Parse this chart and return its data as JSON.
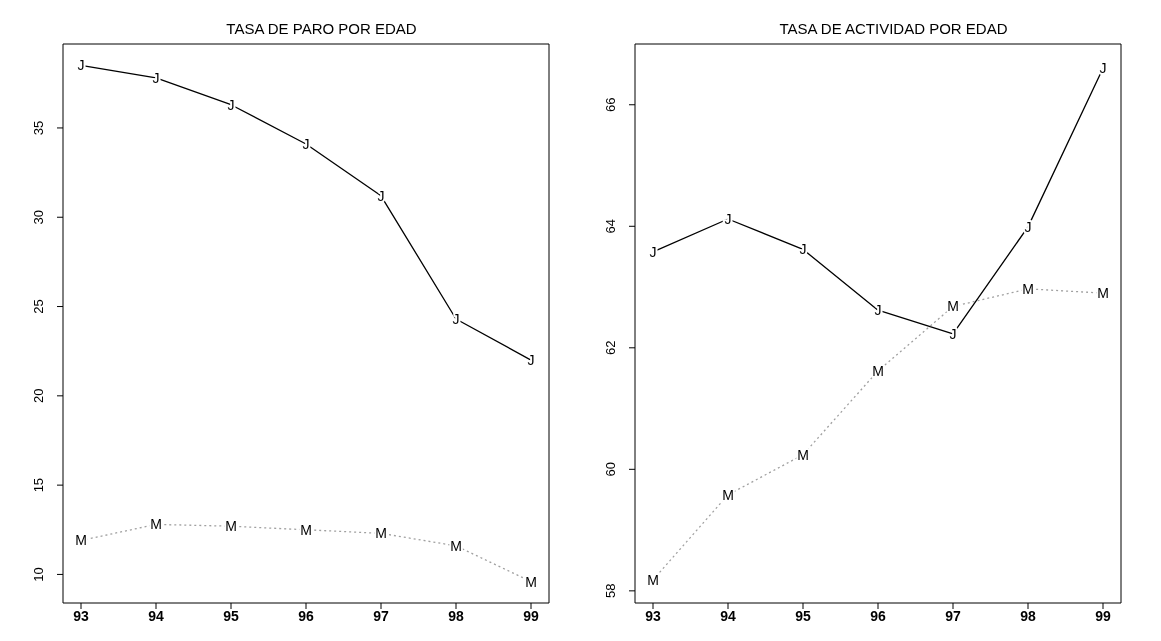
{
  "chart_data": [
    {
      "type": "line",
      "title": "TASA DE PARO POR EDAD",
      "x": [
        93,
        94,
        95,
        96,
        97,
        98,
        99
      ],
      "xlim": [
        92.76,
        99.24
      ],
      "xticks": [
        93,
        94,
        95,
        96,
        97,
        98,
        99
      ],
      "ylim": [
        8.4,
        39.7
      ],
      "yticks": [
        10,
        15,
        20,
        25,
        30,
        35
      ],
      "grid": false,
      "marker": "none",
      "series": [
        {
          "name": "J",
          "color": "#000000",
          "line_style": "solid",
          "values": [
            38.5,
            37.8,
            36.3,
            34.1,
            31.2,
            24.3,
            22.0
          ]
        },
        {
          "name": "M",
          "color": "#a0a0a0",
          "line_style": "dotted",
          "values": [
            11.9,
            12.8,
            12.7,
            12.5,
            12.3,
            11.6,
            9.6
          ]
        }
      ]
    },
    {
      "type": "line",
      "title": "TASA DE ACTIVIDAD POR EDAD",
      "x": [
        93,
        94,
        95,
        96,
        97,
        98,
        99
      ],
      "xlim": [
        92.76,
        99.24
      ],
      "xticks": [
        93,
        94,
        95,
        96,
        97,
        98,
        99
      ],
      "ylim": [
        57.8,
        67.0
      ],
      "yticks": [
        58,
        60,
        62,
        64,
        66
      ],
      "grid": false,
      "marker": "none",
      "series": [
        {
          "name": "J",
          "color": "#000000",
          "line_style": "solid",
          "values": [
            63.58,
            64.12,
            63.62,
            62.62,
            62.23,
            63.99,
            66.6
          ]
        },
        {
          "name": "M",
          "color": "#a0a0a0",
          "line_style": "dotted",
          "values": [
            58.18,
            59.58,
            60.24,
            61.62,
            62.68,
            62.97,
            62.9
          ]
        }
      ]
    }
  ]
}
